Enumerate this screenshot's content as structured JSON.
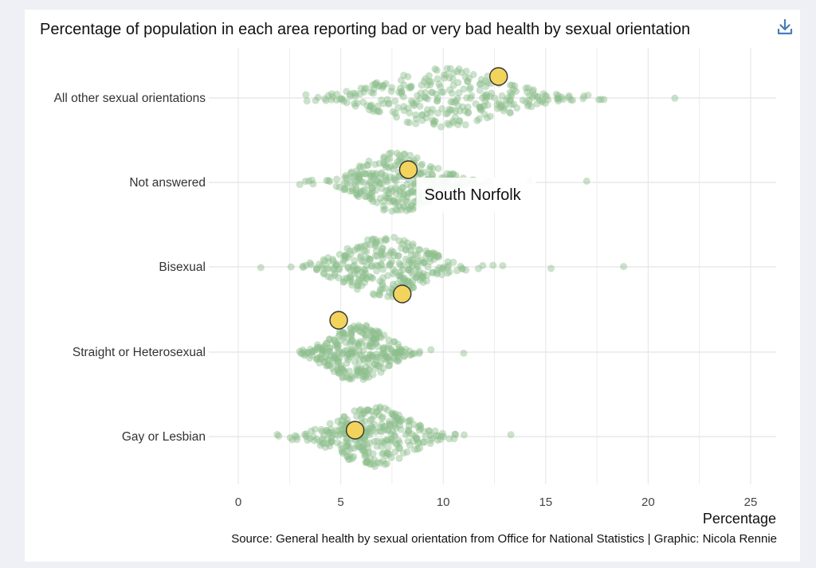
{
  "chart_data": {
    "type": "scatter",
    "title": "Percentage of population in each area reporting bad or very bad health by sexual orientation",
    "xlabel": "Percentage",
    "ylabel": "",
    "xlim": [
      0,
      26
    ],
    "x_ticks": [
      0,
      5,
      10,
      15,
      20,
      25
    ],
    "x_tick_labels": [
      "0",
      "5",
      "10",
      "15",
      "20",
      "25"
    ],
    "grid": true,
    "categories": [
      "All other sexual orientations",
      "Not answered",
      "Bisexual",
      "Straight or Heterosexual",
      "Gay or Lesbian"
    ],
    "distributions": [
      {
        "category": "All other sexual orientations",
        "min": 3.3,
        "max": 21.3,
        "center": 10.0,
        "spread": 2.8
      },
      {
        "category": "Not answered",
        "min": 3.0,
        "max": 17.0,
        "center": 7.8,
        "spread": 1.7
      },
      {
        "category": "Bisexual",
        "min": 1.1,
        "max": 18.8,
        "center": 7.2,
        "spread": 1.9
      },
      {
        "category": "Straight or Heterosexual",
        "min": 3.0,
        "max": 11.0,
        "center": 5.8,
        "spread": 1.3
      },
      {
        "category": "Gay or Lesbian",
        "min": 1.9,
        "max": 13.3,
        "center": 6.6,
        "spread": 1.7
      }
    ],
    "highlight": {
      "area": "South Norfolk",
      "color": "#f2d45c",
      "points": [
        {
          "category": "All other sexual orientations",
          "x": 12.7
        },
        {
          "category": "Not answered",
          "x": 8.3
        },
        {
          "category": "Bisexual",
          "x": 8.0
        },
        {
          "category": "Straight or Heterosexual",
          "x": 4.9
        },
        {
          "category": "Gay or Lesbian",
          "x": 5.7
        }
      ]
    },
    "tooltip": {
      "text": "South Norfolk",
      "category": "Not answered"
    },
    "point_color": "#8fbf8f",
    "source": "Source: General health by sexual orientation from Office for National Statistics | Graphic: Nicola Rennie"
  },
  "toolbar": {
    "download_icon": "download-icon"
  }
}
